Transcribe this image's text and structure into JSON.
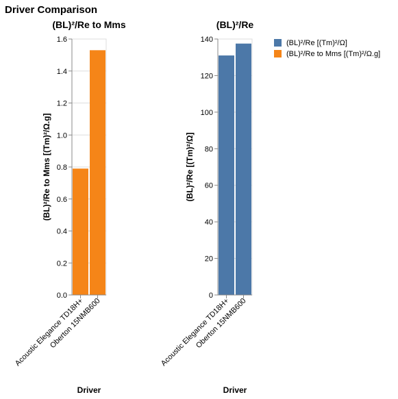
{
  "title": "Driver Comparison",
  "legend": {
    "items": [
      {
        "label": "(BL)²/Re [(Tm)²/Ω]",
        "color": "#4c78a8"
      },
      {
        "label": "(BL)²/Re to Mms [(Tm)²/Ω.g]",
        "color": "#f58518"
      }
    ]
  },
  "chart_data": [
    {
      "type": "bar",
      "title": "(BL)²/Re to Mms",
      "xlabel": "Driver",
      "ylabel": "(BL)²/Re to Mms [(Tm)²/Ω.g]",
      "categories": [
        "Acoustic Elegance TD18H+",
        "Oberton 15NMB600"
      ],
      "values": [
        0.79,
        1.53
      ],
      "ylim": [
        0,
        1.6
      ],
      "yticks": [
        "0.0",
        "0.2",
        "0.4",
        "0.6",
        "0.8",
        "1.0",
        "1.2",
        "1.4",
        "1.6"
      ],
      "color": "#f58518",
      "grid": true
    },
    {
      "type": "bar",
      "title": "(BL)²/Re",
      "xlabel": "Driver",
      "ylabel": "(BL)²/Re [(Tm)²/Ω]",
      "categories": [
        "Acoustic Elegance TD18H+",
        "Oberton 15NMB600"
      ],
      "values": [
        131,
        137.5
      ],
      "ylim": [
        0,
        140
      ],
      "yticks": [
        "0",
        "20",
        "40",
        "60",
        "80",
        "100",
        "120",
        "140"
      ],
      "color": "#4c78a8",
      "grid": true
    }
  ]
}
